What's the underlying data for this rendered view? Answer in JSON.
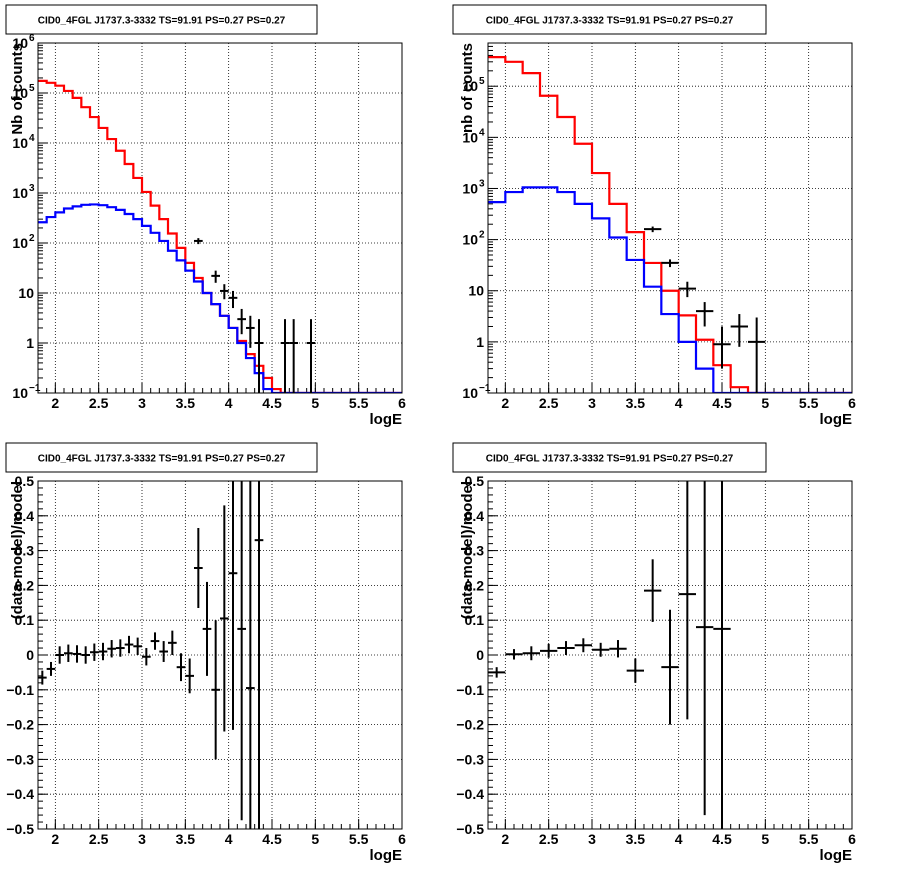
{
  "chart_data": [
    {
      "type": "line",
      "title": "CID0_4FGL J1737.3-3332 TS=91.91 PS=0.27 PS=0.27",
      "xlabel": "logE",
      "ylabel": "Nb of counts",
      "xlim": [
        1.8,
        6
      ],
      "ylim": [
        0.1,
        1000000
      ],
      "yscale": "log",
      "grid": true,
      "x_ticks": [
        "2",
        "2.5",
        "3",
        "3.5",
        "4",
        "4.5",
        "5",
        "5.5",
        "6"
      ],
      "y_ticks": [
        {
          "value": 0.1,
          "base": "10",
          "exp": "−1"
        },
        {
          "value": 1,
          "base": "1",
          "exp": ""
        },
        {
          "value": 10,
          "base": "10",
          "exp": ""
        },
        {
          "value": 100,
          "base": "10",
          "exp": "2"
        },
        {
          "value": 1000,
          "base": "10",
          "exp": "3"
        },
        {
          "value": 10000,
          "base": "10",
          "exp": "4"
        },
        {
          "value": 100000,
          "base": "10",
          "exp": "5"
        },
        {
          "value": 1000000,
          "base": "10",
          "exp": "6"
        }
      ],
      "bin_edges": [
        1.8,
        1.9,
        2.0,
        2.1,
        2.2,
        2.3,
        2.4,
        2.5,
        2.6,
        2.7,
        2.8,
        2.9,
        3.0,
        3.1,
        3.2,
        3.3,
        3.4,
        3.5,
        3.6,
        3.7,
        3.8,
        3.9,
        4.0,
        4.1,
        4.2,
        4.3,
        4.4,
        4.5,
        4.6,
        4.7,
        4.8,
        4.9,
        5.0,
        5.1,
        5.2,
        5.3,
        5.4,
        5.5,
        5.6,
        5.7,
        5.8,
        5.9,
        6.0
      ],
      "series": [
        {
          "color": "#ff0000",
          "kind": "model_total",
          "values": [
            175000,
            160000,
            140000,
            110000,
            80000,
            52000,
            33000,
            20000,
            12000,
            7000,
            3800,
            2000,
            1050,
            560,
            300,
            155,
            80,
            40,
            20,
            10,
            6,
            3.5,
            2.0,
            1.1,
            0.6,
            0.35,
            0.2,
            0.12,
            0.1,
            0.1,
            0.1,
            0.1,
            0.1,
            0.1,
            0.1,
            0.1,
            0.1,
            0.1,
            0.1,
            0.1,
            0.1,
            0.1
          ]
        },
        {
          "color": "#0000ff",
          "kind": "model_source",
          "values": [
            260,
            330,
            410,
            490,
            540,
            580,
            590,
            570,
            520,
            460,
            380,
            300,
            220,
            160,
            110,
            70,
            45,
            28,
            17,
            10,
            6,
            3.5,
            2.0,
            1.0,
            0.5,
            0.25,
            0.12,
            0.1,
            0.1,
            0.1,
            0.1,
            0.1,
            0.1,
            0.1,
            0.1,
            0.1,
            0.1,
            0.1,
            0.1,
            0.1,
            0.1,
            0.1
          ]
        }
      ],
      "points": [
        {
          "x": 3.65,
          "y": 110,
          "ylo": 95,
          "yhi": 125,
          "xerr": 0.05
        },
        {
          "x": 3.85,
          "y": 22,
          "ylo": 16,
          "yhi": 28,
          "xerr": 0.05
        },
        {
          "x": 3.95,
          "y": 11,
          "ylo": 7.5,
          "yhi": 15,
          "xerr": 0.05
        },
        {
          "x": 4.05,
          "y": 8,
          "ylo": 5,
          "yhi": 11,
          "xerr": 0.05
        },
        {
          "x": 4.15,
          "y": 3,
          "ylo": 1.5,
          "yhi": 4.8,
          "xerr": 0.05
        },
        {
          "x": 4.25,
          "y": 2,
          "ylo": 0.8,
          "yhi": 3.5,
          "xerr": 0.05
        },
        {
          "x": 4.35,
          "y": 1,
          "ylo": 0.1,
          "yhi": 3.0,
          "xerr": 0.05
        },
        {
          "x": 4.65,
          "y": 1,
          "ylo": 0.1,
          "yhi": 3.0,
          "xerr": 0.05
        },
        {
          "x": 4.75,
          "y": 1,
          "ylo": 0.1,
          "yhi": 3.0,
          "xerr": 0.05
        },
        {
          "x": 4.95,
          "y": 1,
          "ylo": 0.1,
          "yhi": 3.0,
          "xerr": 0.05
        }
      ]
    },
    {
      "type": "line",
      "title": "CID0_4FGL J1737.3-3332 TS=91.91 PS=0.27 PS=0.27",
      "xlabel": "logE",
      "ylabel": "nb of counts",
      "xlim": [
        1.8,
        6
      ],
      "ylim": [
        0.1,
        700000
      ],
      "yscale": "log",
      "grid": true,
      "x_ticks": [
        "2",
        "2.5",
        "3",
        "3.5",
        "4",
        "4.5",
        "5",
        "5.5",
        "6"
      ],
      "y_ticks": [
        {
          "value": 0.1,
          "base": "10",
          "exp": "−1"
        },
        {
          "value": 1,
          "base": "1",
          "exp": ""
        },
        {
          "value": 10,
          "base": "10",
          "exp": ""
        },
        {
          "value": 100,
          "base": "10",
          "exp": "2"
        },
        {
          "value": 1000,
          "base": "10",
          "exp": "3"
        },
        {
          "value": 10000,
          "base": "10",
          "exp": "4"
        },
        {
          "value": 100000,
          "base": "10",
          "exp": "5"
        }
      ],
      "bin_edges": [
        1.8,
        2.0,
        2.2,
        2.4,
        2.6,
        2.8,
        3.0,
        3.2,
        3.4,
        3.6,
        3.8,
        4.0,
        4.2,
        4.4,
        4.6,
        4.8,
        5.0,
        5.2,
        5.4,
        5.6,
        5.8,
        6.0
      ],
      "series": [
        {
          "color": "#ff0000",
          "kind": "model_total",
          "values": [
            370000,
            300000,
            180000,
            65000,
            25000,
            7500,
            2000,
            500,
            140,
            35,
            10,
            3.3,
            1.1,
            0.35,
            0.13,
            0.1,
            0.1,
            0.1,
            0.1,
            0.1,
            0.1
          ]
        },
        {
          "color": "#0000ff",
          "kind": "model_source",
          "values": [
            540,
            850,
            1050,
            1050,
            850,
            500,
            260,
            110,
            40,
            12,
            3.5,
            1.0,
            0.3,
            0.1,
            0.1,
            0.1,
            0.1,
            0.1,
            0.1,
            0.1,
            0.1
          ]
        }
      ],
      "points": [
        {
          "x": 3.7,
          "y": 160,
          "ylo": 140,
          "yhi": 180,
          "xerr": 0.1
        },
        {
          "x": 3.9,
          "y": 35,
          "ylo": 29,
          "yhi": 41,
          "xerr": 0.1
        },
        {
          "x": 4.1,
          "y": 11,
          "ylo": 7.5,
          "yhi": 15,
          "xerr": 0.1
        },
        {
          "x": 4.3,
          "y": 4,
          "ylo": 2,
          "yhi": 6,
          "xerr": 0.1
        },
        {
          "x": 4.5,
          "y": 0.9,
          "ylo": 0.3,
          "yhi": 2.0,
          "xerr": 0.1
        },
        {
          "x": 4.7,
          "y": 2,
          "ylo": 0.8,
          "yhi": 3.5,
          "xerr": 0.1
        },
        {
          "x": 4.9,
          "y": 1,
          "ylo": 0.1,
          "yhi": 3.0,
          "xerr": 0.1
        }
      ]
    },
    {
      "type": "scatter",
      "title": "CID0_4FGL J1737.3-3332 TS=91.91 PS=0.27 PS=0.27",
      "xlabel": "logE",
      "ylabel": "(data-model)/model",
      "xlim": [
        1.8,
        6
      ],
      "ylim": [
        -0.5,
        0.5
      ],
      "yscale": "linear",
      "grid": true,
      "x_ticks": [
        "2",
        "2.5",
        "3",
        "3.5",
        "4",
        "4.5",
        "5",
        "5.5",
        "6"
      ],
      "y_ticks": [
        "−0.5",
        "−0.4",
        "−0.3",
        "−0.2",
        "−0.1",
        "0",
        "0.1",
        "0.2",
        "0.3",
        "0.4",
        "0.5"
      ],
      "points": [
        {
          "x": 1.85,
          "y": -0.065,
          "yerr": 0.02,
          "xerr": 0.05
        },
        {
          "x": 1.95,
          "y": -0.04,
          "yerr": 0.02,
          "xerr": 0.05
        },
        {
          "x": 2.05,
          "y": 0.0,
          "yerr": 0.025,
          "xerr": 0.05
        },
        {
          "x": 2.15,
          "y": 0.005,
          "yerr": 0.025,
          "xerr": 0.05
        },
        {
          "x": 2.25,
          "y": 0.003,
          "yerr": 0.025,
          "xerr": 0.05
        },
        {
          "x": 2.35,
          "y": 0.0,
          "yerr": 0.025,
          "xerr": 0.05
        },
        {
          "x": 2.45,
          "y": 0.008,
          "yerr": 0.025,
          "xerr": 0.05
        },
        {
          "x": 2.55,
          "y": 0.01,
          "yerr": 0.025,
          "xerr": 0.05
        },
        {
          "x": 2.65,
          "y": 0.018,
          "yerr": 0.025,
          "xerr": 0.05
        },
        {
          "x": 2.75,
          "y": 0.02,
          "yerr": 0.025,
          "xerr": 0.05
        },
        {
          "x": 2.85,
          "y": 0.03,
          "yerr": 0.025,
          "xerr": 0.05
        },
        {
          "x": 2.95,
          "y": 0.025,
          "yerr": 0.025,
          "xerr": 0.05
        },
        {
          "x": 3.05,
          "y": -0.005,
          "yerr": 0.025,
          "xerr": 0.05
        },
        {
          "x": 3.15,
          "y": 0.04,
          "yerr": 0.025,
          "xerr": 0.05
        },
        {
          "x": 3.25,
          "y": 0.01,
          "yerr": 0.03,
          "xerr": 0.05
        },
        {
          "x": 3.35,
          "y": 0.035,
          "yerr": 0.035,
          "xerr": 0.05
        },
        {
          "x": 3.45,
          "y": -0.035,
          "yerr": 0.04,
          "xerr": 0.05
        },
        {
          "x": 3.55,
          "y": -0.06,
          "yerr": 0.05,
          "xerr": 0.05
        },
        {
          "x": 3.65,
          "y": 0.25,
          "yerr": 0.115,
          "xerr": 0.05
        },
        {
          "x": 3.75,
          "y": 0.075,
          "yerr": 0.135,
          "xerr": 0.05
        },
        {
          "x": 3.85,
          "y": -0.1,
          "yerr": 0.2,
          "xerr": 0.05
        },
        {
          "x": 3.95,
          "y": 0.105,
          "yerr": 0.325,
          "xerr": 0.05
        },
        {
          "x": 4.05,
          "y": 0.235,
          "yerr": 0.45,
          "xerr": 0.05
        },
        {
          "x": 4.15,
          "y": 0.075,
          "yerr": 0.55,
          "xerr": 0.05
        },
        {
          "x": 4.25,
          "y": -0.095,
          "yerr": 0.7,
          "xerr": 0.05
        },
        {
          "x": 4.35,
          "y": 0.33,
          "yerr": 0.9,
          "xerr": 0.05
        }
      ]
    },
    {
      "type": "scatter",
      "title": "CID0_4FGL J1737.3-3332 TS=91.91 PS=0.27 PS=0.27",
      "xlabel": "logE",
      "ylabel": "(data-model)/model",
      "xlim": [
        1.8,
        6
      ],
      "ylim": [
        -0.5,
        0.5
      ],
      "yscale": "linear",
      "grid": true,
      "x_ticks": [
        "2",
        "2.5",
        "3",
        "3.5",
        "4",
        "4.5",
        "5",
        "5.5",
        "6"
      ],
      "y_ticks": [
        "−0.5",
        "−0.4",
        "−0.3",
        "−0.2",
        "−0.1",
        "0",
        "0.1",
        "0.2",
        "0.3",
        "0.4",
        "0.5"
      ],
      "points": [
        {
          "x": 1.9,
          "y": -0.05,
          "yerr": 0.015,
          "xerr": 0.1
        },
        {
          "x": 2.1,
          "y": 0.002,
          "yerr": 0.015,
          "xerr": 0.1
        },
        {
          "x": 2.3,
          "y": 0.005,
          "yerr": 0.02,
          "xerr": 0.1
        },
        {
          "x": 2.5,
          "y": 0.012,
          "yerr": 0.02,
          "xerr": 0.1
        },
        {
          "x": 2.7,
          "y": 0.02,
          "yerr": 0.02,
          "xerr": 0.1
        },
        {
          "x": 2.9,
          "y": 0.028,
          "yerr": 0.02,
          "xerr": 0.1
        },
        {
          "x": 3.1,
          "y": 0.015,
          "yerr": 0.02,
          "xerr": 0.1
        },
        {
          "x": 3.3,
          "y": 0.018,
          "yerr": 0.025,
          "xerr": 0.1
        },
        {
          "x": 3.5,
          "y": -0.045,
          "yerr": 0.035,
          "xerr": 0.1
        },
        {
          "x": 3.7,
          "y": 0.185,
          "yerr": 0.09,
          "xerr": 0.1
        },
        {
          "x": 3.9,
          "y": -0.035,
          "yerr": 0.165,
          "xerr": 0.1
        },
        {
          "x": 4.1,
          "y": 0.175,
          "yerr": 0.36,
          "xerr": 0.1
        },
        {
          "x": 4.3,
          "y": 0.08,
          "yerr": 0.54,
          "xerr": 0.1
        },
        {
          "x": 4.5,
          "y": 0.075,
          "yerr": 0.8,
          "xerr": 0.1
        }
      ]
    }
  ]
}
